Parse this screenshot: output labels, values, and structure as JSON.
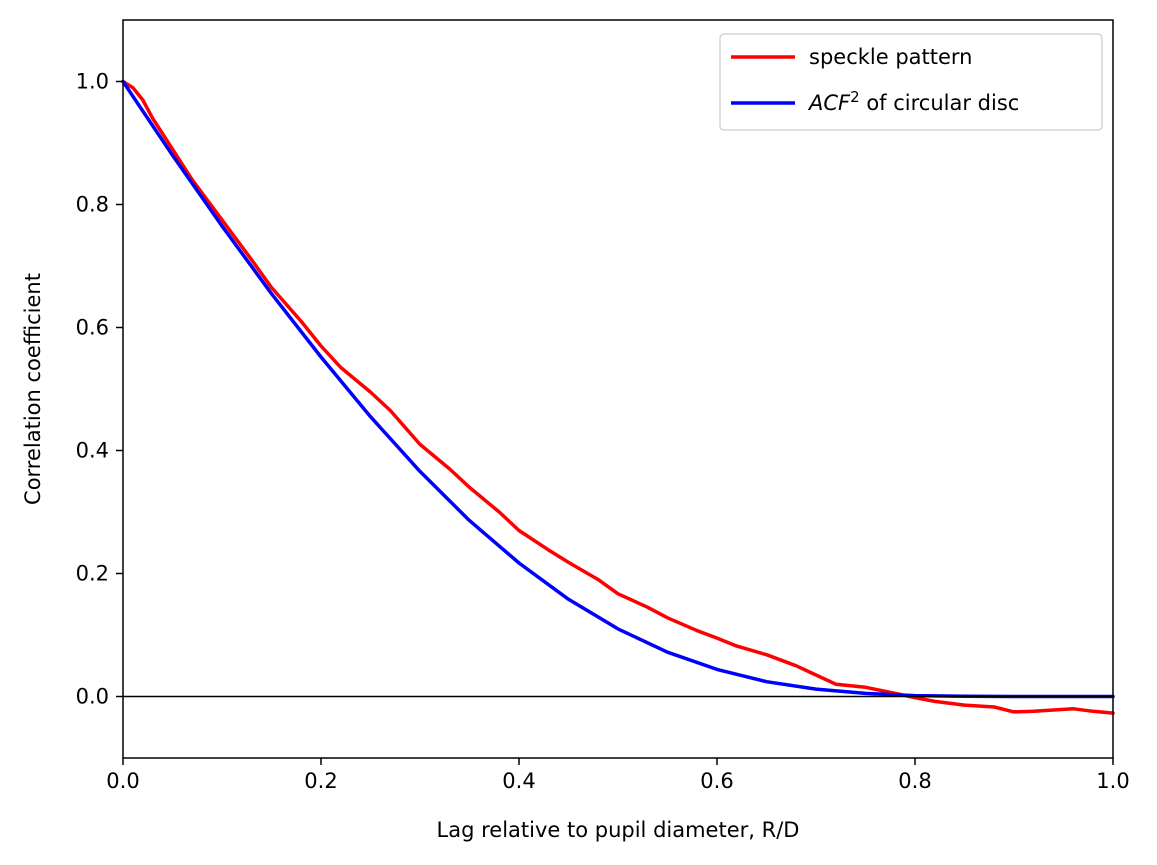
{
  "chart_data": {
    "type": "line",
    "title": "",
    "xlabel": "Lag relative to pupil diameter, R/D",
    "ylabel": "Correlation coefficient",
    "xlim": [
      0.0,
      1.0
    ],
    "ylim": [
      -0.1,
      1.1
    ],
    "xticks": [
      "0.0",
      "0.2",
      "0.4",
      "0.6",
      "0.8",
      "1.0"
    ],
    "yticks": [
      "0.0",
      "0.2",
      "0.4",
      "0.6",
      "0.8",
      "1.0"
    ],
    "grid": false,
    "legend_position": "top-right",
    "reference_line_y": 0.0,
    "series": [
      {
        "name": "speckle pattern",
        "color": "#ff0000",
        "x": [
          0.0,
          0.01,
          0.02,
          0.03,
          0.05,
          0.07,
          0.1,
          0.13,
          0.15,
          0.18,
          0.2,
          0.22,
          0.25,
          0.27,
          0.3,
          0.33,
          0.35,
          0.38,
          0.4,
          0.43,
          0.45,
          0.48,
          0.5,
          0.53,
          0.55,
          0.58,
          0.6,
          0.62,
          0.65,
          0.68,
          0.7,
          0.72,
          0.75,
          0.78,
          0.8,
          0.82,
          0.85,
          0.88,
          0.9,
          0.92,
          0.94,
          0.96,
          0.98,
          1.0
        ],
        "y": [
          1.0,
          0.99,
          0.97,
          0.94,
          0.89,
          0.84,
          0.775,
          0.71,
          0.665,
          0.61,
          0.57,
          0.535,
          0.495,
          0.465,
          0.41,
          0.37,
          0.34,
          0.3,
          0.27,
          0.238,
          0.218,
          0.19,
          0.167,
          0.145,
          0.128,
          0.107,
          0.095,
          0.082,
          0.068,
          0.05,
          0.035,
          0.02,
          0.015,
          0.005,
          -0.002,
          -0.008,
          -0.014,
          -0.017,
          -0.025,
          -0.024,
          -0.022,
          -0.02,
          -0.024,
          -0.027
        ]
      },
      {
        "name": "ACF² of circular disc",
        "name_parts": {
          "main": "ACF",
          "sup": "2",
          "rest": " of circular disc"
        },
        "color": "#0000ff",
        "x": [
          0.0,
          0.05,
          0.1,
          0.15,
          0.2,
          0.25,
          0.3,
          0.35,
          0.4,
          0.45,
          0.5,
          0.55,
          0.6,
          0.65,
          0.7,
          0.75,
          0.8,
          0.85,
          0.9,
          0.95,
          1.0
        ],
        "y": [
          1.0,
          0.88,
          0.765,
          0.655,
          0.552,
          0.455,
          0.366,
          0.286,
          0.217,
          0.158,
          0.11,
          0.072,
          0.044,
          0.024,
          0.012,
          0.005,
          0.0015,
          0.0003,
          0.0,
          0.0,
          0.0
        ]
      }
    ]
  }
}
